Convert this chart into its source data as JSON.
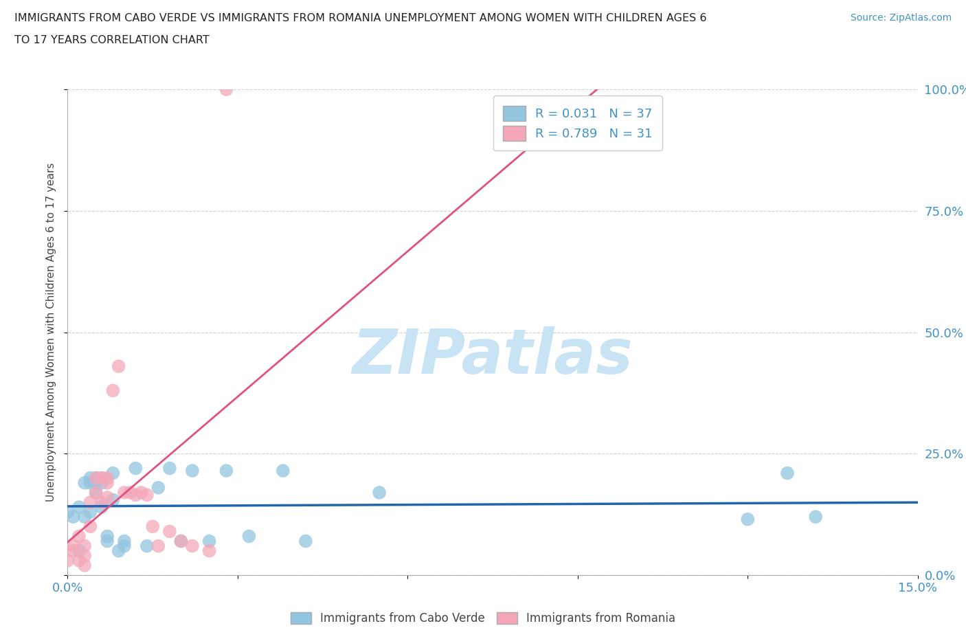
{
  "title_line1": "IMMIGRANTS FROM CABO VERDE VS IMMIGRANTS FROM ROMANIA UNEMPLOYMENT AMONG WOMEN WITH CHILDREN AGES 6",
  "title_line2": "TO 17 YEARS CORRELATION CHART",
  "source_text": "Source: ZipAtlas.com",
  "ylabel": "Unemployment Among Women with Children Ages 6 to 17 years",
  "legend_label1": "Immigrants from Cabo Verde",
  "legend_label2": "Immigrants from Romania",
  "r1": 0.031,
  "n1": 37,
  "r2": 0.789,
  "n2": 31,
  "color_blue": "#92c5de",
  "color_pink": "#f4a7b9",
  "color_blue_text": "#4292c6",
  "color_pink_line": "#e05080",
  "color_blue_line": "#2166ac",
  "xlim": [
    0.0,
    0.15
  ],
  "ylim": [
    0.0,
    1.0
  ],
  "cabo_verde_x": [
    0.0,
    0.001,
    0.002,
    0.002,
    0.003,
    0.003,
    0.004,
    0.004,
    0.004,
    0.005,
    0.005,
    0.005,
    0.006,
    0.006,
    0.006,
    0.007,
    0.007,
    0.008,
    0.008,
    0.009,
    0.01,
    0.01,
    0.012,
    0.014,
    0.016,
    0.018,
    0.02,
    0.022,
    0.025,
    0.028,
    0.032,
    0.038,
    0.042,
    0.055,
    0.12,
    0.127,
    0.132
  ],
  "cabo_verde_y": [
    0.13,
    0.12,
    0.05,
    0.14,
    0.12,
    0.19,
    0.2,
    0.19,
    0.13,
    0.2,
    0.17,
    0.19,
    0.2,
    0.14,
    0.19,
    0.07,
    0.08,
    0.21,
    0.155,
    0.05,
    0.06,
    0.07,
    0.22,
    0.06,
    0.18,
    0.22,
    0.07,
    0.215,
    0.07,
    0.215,
    0.08,
    0.215,
    0.07,
    0.17,
    0.115,
    0.21,
    0.12
  ],
  "romania_x": [
    0.0,
    0.001,
    0.001,
    0.002,
    0.002,
    0.003,
    0.003,
    0.003,
    0.004,
    0.004,
    0.005,
    0.005,
    0.006,
    0.006,
    0.007,
    0.007,
    0.007,
    0.008,
    0.009,
    0.01,
    0.011,
    0.012,
    0.013,
    0.014,
    0.015,
    0.016,
    0.018,
    0.02,
    0.022,
    0.025,
    0.028
  ],
  "romania_y": [
    0.03,
    0.05,
    0.06,
    0.03,
    0.08,
    0.02,
    0.04,
    0.06,
    0.15,
    0.1,
    0.17,
    0.2,
    0.15,
    0.2,
    0.16,
    0.2,
    0.19,
    0.38,
    0.43,
    0.17,
    0.17,
    0.165,
    0.17,
    0.165,
    0.1,
    0.06,
    0.09,
    0.07,
    0.06,
    0.05,
    1.0
  ],
  "watermark": "ZIPatlas",
  "watermark_color": "#c8e4f4",
  "background_color": "#ffffff",
  "grid_color": "#d0d0d0"
}
